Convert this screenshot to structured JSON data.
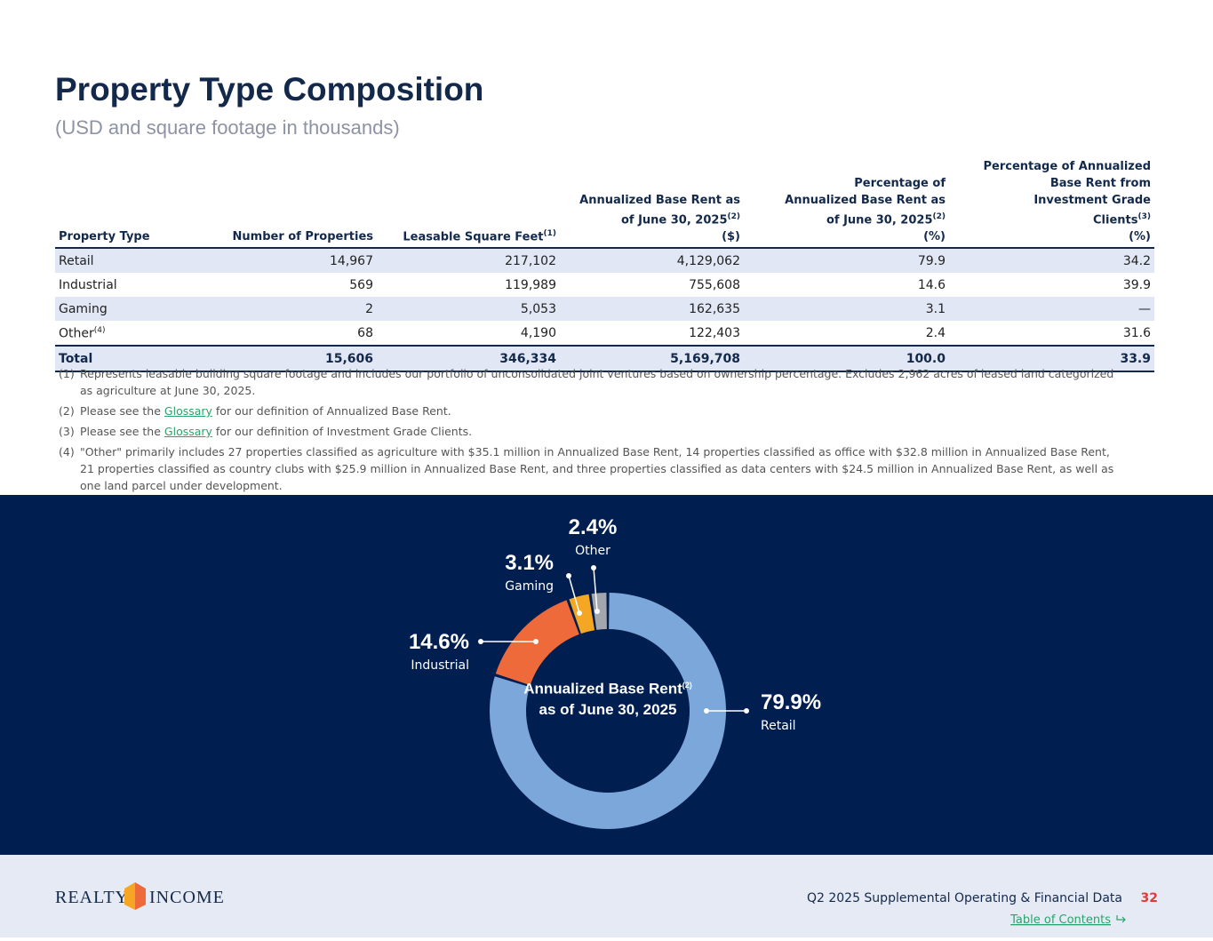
{
  "header": {
    "title": "Property Type Composition",
    "subtitle": "(USD and square footage in thousands)"
  },
  "table": {
    "columns": [
      {
        "text": "Property Type"
      },
      {
        "text": "Number of Properties"
      },
      {
        "text": "Leasable Square Feet",
        "note": "(1)"
      },
      {
        "text": "Annualized Base Rent as of June 30, 2025",
        "note": "(2)",
        "unit": "($)"
      },
      {
        "text": "Percentage of Annualized Base Rent as of June 30, 2025",
        "note": "(2)",
        "unit": "(%)"
      },
      {
        "text": "Percentage of Annualized Base Rent from Investment Grade Clients",
        "note": "(3)",
        "unit": "(%)"
      }
    ],
    "rows": [
      {
        "cells": [
          "Retail",
          "14,967",
          "217,102",
          "4,129,062",
          "79.9",
          "34.2"
        ]
      },
      {
        "cells": [
          "Industrial",
          "569",
          "119,989",
          "755,608",
          "14.6",
          "39.9"
        ]
      },
      {
        "cells": [
          "Gaming",
          "2",
          "5,053",
          "162,635",
          "3.1",
          "—"
        ]
      },
      {
        "cells": [
          "Other",
          "68",
          "4,190",
          "122,403",
          "2.4",
          "31.6"
        ],
        "note": "(4)"
      }
    ],
    "total": [
      "Total",
      "15,606",
      "346,334",
      "5,169,708",
      "100.0",
      "33.9"
    ]
  },
  "footnotes": [
    {
      "num": "(1)",
      "text": "Represents leasable building square footage and includes our portfolio of unconsolidated joint ventures based on ownership percentage. Excludes 2,962 acres of leased land categorized as agriculture at June 30, 2025."
    },
    {
      "num": "(2)",
      "text": "Please see the ",
      "link": "Glossary",
      "after": " for our definition of Annualized Base Rent."
    },
    {
      "num": "(3)",
      "text": "Please see the ",
      "link": "Glossary",
      "after": " for our definition of Investment Grade Clients."
    },
    {
      "num": "(4)",
      "text": "\"Other\" primarily includes 27 properties classified as agriculture with $35.1 million in Annualized Base Rent, 14 properties classified as office with $32.8 million in Annualized Base Rent, 21 properties classified as country clubs with $25.9 million in Annualized Base Rent, and three properties classified as data centers with $24.5 million in Annualized Base Rent, as well as one land parcel under development."
    }
  ],
  "chart_data": {
    "type": "pie",
    "categories": [
      "Retail",
      "Industrial",
      "Gaming",
      "Other"
    ],
    "values": [
      79.9,
      14.6,
      3.1,
      2.4
    ],
    "value_labels": [
      "79.9%",
      "14.6%",
      "3.1%",
      "2.4%"
    ],
    "colors": [
      "#7ba7da",
      "#ee6a3a",
      "#f5a623",
      "#a3a6ad"
    ],
    "center_label": {
      "text": "Annualized Base Rent",
      "note": "(2)",
      "after": "as of June 30, 2025"
    }
  },
  "footer": {
    "logo_left": "REALTY",
    "logo_right": "INCOME",
    "document": "Q2 2025 Supplemental Operating & Financial Data",
    "page": "32",
    "toc": "Table of Contents"
  }
}
